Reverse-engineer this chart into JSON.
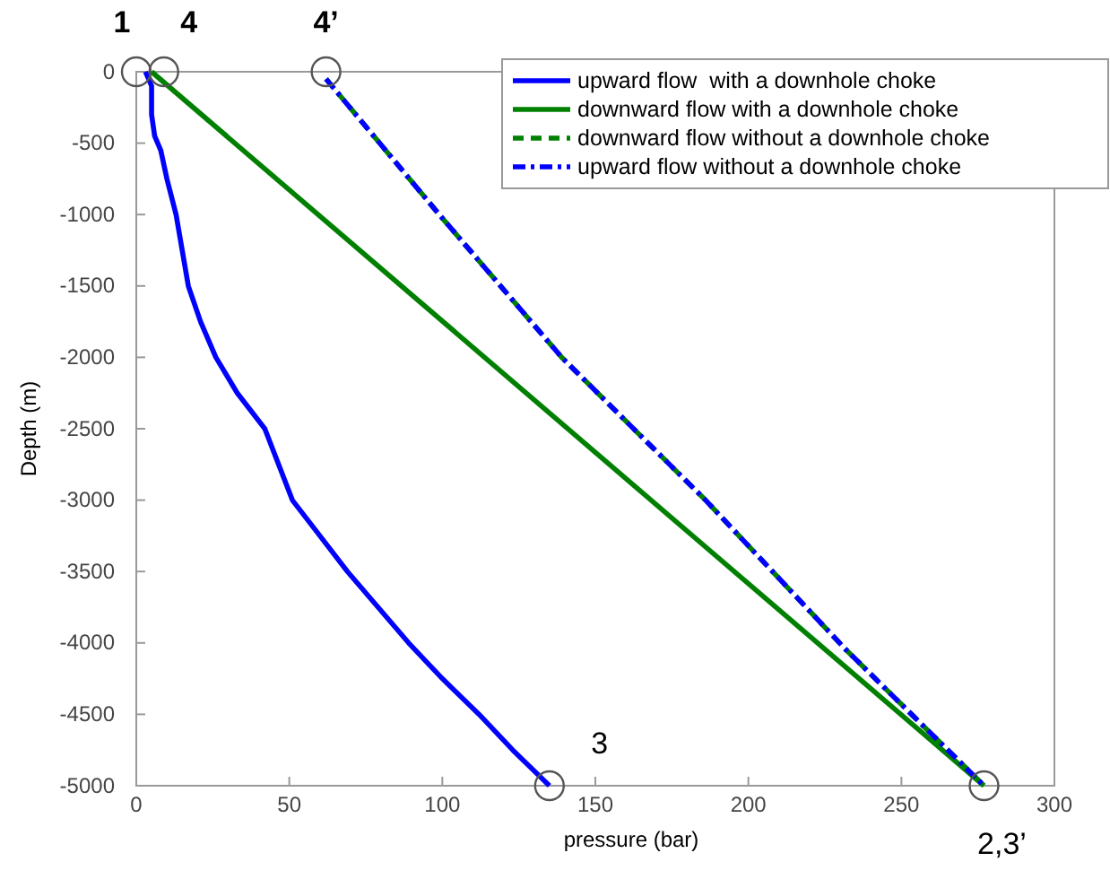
{
  "chart_data": {
    "type": "line",
    "xlabel": "pressure (bar)",
    "ylabel": "Depth (m)",
    "xlim": [
      0,
      300
    ],
    "xticks": [
      0,
      50,
      100,
      150,
      200,
      250,
      300
    ],
    "ylim": [
      -5000,
      0
    ],
    "yticks": [
      0,
      -500,
      -1000,
      -1500,
      -2000,
      -2500,
      -3000,
      -3500,
      -4000,
      -4500,
      -5000
    ],
    "grid": false,
    "legend": "top right",
    "series": [
      {
        "name": "upward flow  with a downhole choke",
        "color": "#0000ff",
        "line_style": "solid",
        "x": [
          3,
          5,
          5,
          6,
          8,
          10,
          13,
          17,
          21,
          26,
          33,
          42,
          51,
          60,
          69,
          79,
          89,
          100,
          112,
          123,
          135
        ],
        "values": [
          0,
          -100,
          -300,
          -450,
          -550,
          -750,
          -1000,
          -1500,
          -1750,
          -2000,
          -2250,
          -2500,
          -3000,
          -3250,
          -3500,
          -3750,
          -4000,
          -4250,
          -4500,
          -4750,
          -5000
        ]
      },
      {
        "name": "downward flow with a downhole choke",
        "color": "#008000",
        "line_style": "solid",
        "x": [
          5,
          277
        ],
        "values": [
          0,
          -5000
        ]
      },
      {
        "name": "downward flow without a downhole choke",
        "color": "#008000",
        "line_style": "dashed",
        "x": [
          62,
          99,
          139,
          186,
          232,
          277
        ],
        "values": [
          -50,
          -1000,
          -2000,
          -3000,
          -4050,
          -5000
        ]
      },
      {
        "name": "upward flow without a downhole choke",
        "color": "#0000ff",
        "line_style": "dashdot",
        "x": [
          62,
          99,
          139,
          186,
          232,
          277
        ],
        "values": [
          -50,
          -1000,
          -2000,
          -3000,
          -4050,
          -5000
        ]
      }
    ],
    "annotations": [
      {
        "text": "1",
        "x": 0,
        "y": 0
      },
      {
        "text": "4",
        "x": 9,
        "y": 0
      },
      {
        "text": "4’",
        "x": 62,
        "y": 0
      },
      {
        "text": "3",
        "x": 135,
        "y": -5000
      },
      {
        "text": "2,3’",
        "x": 277,
        "y": -5000
      }
    ]
  }
}
